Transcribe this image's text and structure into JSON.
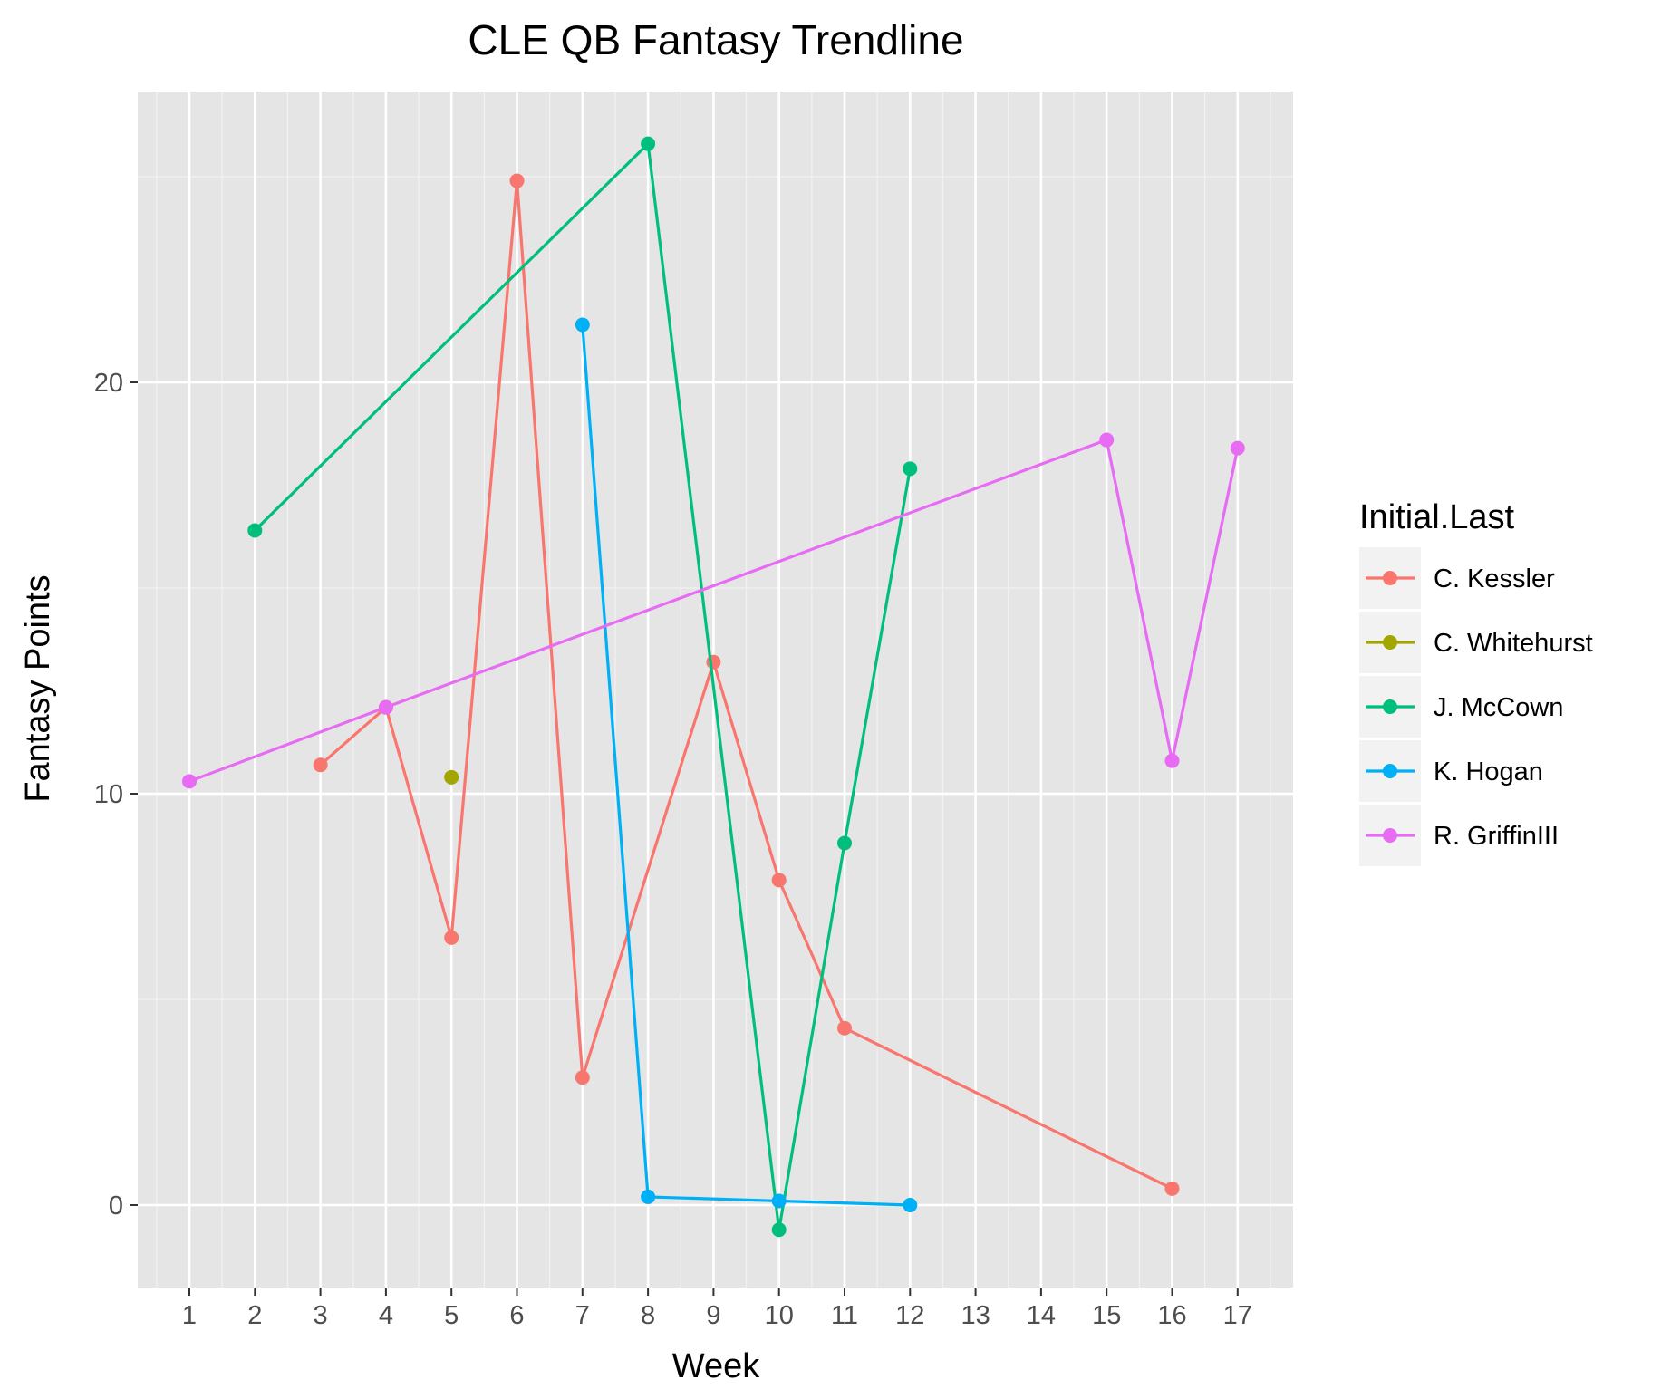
{
  "chart_data": {
    "type": "line",
    "title": "CLE QB Fantasy Trendline",
    "xlabel": "Week",
    "ylabel": "Fantasy Points",
    "x_ticks": [
      "1",
      "2",
      "3",
      "4",
      "5",
      "6",
      "7",
      "8",
      "9",
      "10",
      "11",
      "12",
      "13",
      "14",
      "15",
      "16",
      "17"
    ],
    "y_ticks": [
      0,
      10,
      20
    ],
    "y_tick_labels": [
      "0",
      "10",
      "20"
    ],
    "ylim": [
      -2,
      27.5
    ],
    "grid": true,
    "legend_title": "Initial.Last",
    "legend_position": "right",
    "panel_background": "#e5e5e5",
    "series": [
      {
        "name": "C. Kessler",
        "color": "#F8766D",
        "points": [
          [
            3,
            10.7
          ],
          [
            4,
            12.1
          ],
          [
            5,
            6.5
          ],
          [
            6,
            24.9
          ],
          [
            7,
            3.1
          ],
          [
            9,
            13.2
          ],
          [
            10,
            7.9
          ],
          [
            11,
            4.3
          ],
          [
            16,
            0.4
          ]
        ]
      },
      {
        "name": "C. Whitehurst",
        "color": "#A3A500",
        "points": [
          [
            5,
            10.4
          ]
        ]
      },
      {
        "name": "J. McCown",
        "color": "#00BF7D",
        "points": [
          [
            2,
            16.4
          ],
          [
            8,
            25.8
          ],
          [
            10,
            -0.6
          ],
          [
            11,
            8.8
          ],
          [
            12,
            17.9
          ]
        ]
      },
      {
        "name": "K. Hogan",
        "color": "#00B0F6",
        "points": [
          [
            7,
            21.4
          ],
          [
            8,
            0.2
          ],
          [
            10,
            0.1
          ],
          [
            12,
            0.0
          ]
        ]
      },
      {
        "name": "R. GriffinIII",
        "color": "#E76BF3",
        "points": [
          [
            1,
            10.3
          ],
          [
            4,
            12.1
          ],
          [
            15,
            18.6
          ],
          [
            16,
            10.8
          ],
          [
            17,
            18.4
          ]
        ]
      }
    ]
  }
}
